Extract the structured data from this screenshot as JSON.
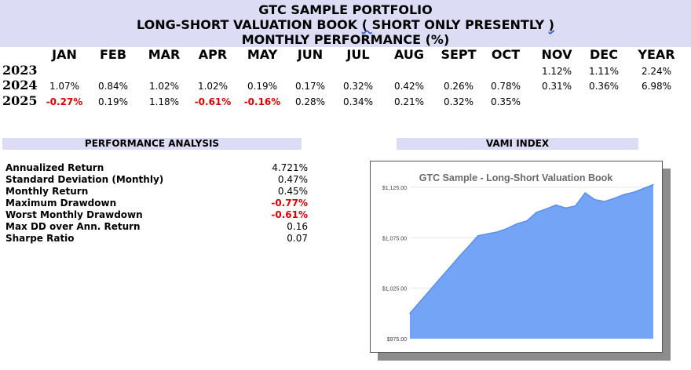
{
  "header": {
    "line1": "GTC SAMPLE PORTFOLIO",
    "line2_a": "LONG-SHORT VALUATION BOOK ",
    "line2_b": "( ",
    "line2_c": "SHORT ONLY PRESENTLY ",
    "line2_d": ")",
    "line3": "MONTHLY PERFORMANCE (%)"
  },
  "columns": [
    "JAN",
    "FEB",
    "MAR",
    "APR",
    "MAY",
    "JUN",
    "JUL",
    "AUG",
    "SEPT",
    "OCT",
    "NOV",
    "DEC",
    "YEAR"
  ],
  "rows": [
    {
      "year": "2023",
      "values": [
        "",
        "",
        "",
        "",
        "",
        "",
        "",
        "",
        "",
        "",
        "1.12%",
        "1.11%",
        "2.24%"
      ]
    },
    {
      "year": "2024",
      "values": [
        "1.07%",
        "0.84%",
        "1.02%",
        "1.02%",
        "0.19%",
        "0.17%",
        "0.32%",
        "0.42%",
        "0.26%",
        "0.78%",
        "0.31%",
        "0.36%",
        "6.98%"
      ]
    },
    {
      "year": "2025",
      "values": [
        "-0.27%",
        "0.19%",
        "1.18%",
        "-0.61%",
        "-0.16%",
        "0.28%",
        "0.34%",
        "0.21%",
        "0.32%",
        "0.35%",
        "",
        "",
        ""
      ]
    }
  ],
  "performance": {
    "title": "PERFORMANCE ANALYSIS",
    "items": [
      {
        "label": "Annualized Return",
        "value": "4.721%"
      },
      {
        "label": "Standard Deviation (Monthly)",
        "value": "0.47%"
      },
      {
        "label": "Monthly Return",
        "value": "0.45%"
      },
      {
        "label": "Maximum Drawdown",
        "value": "-0.77%"
      },
      {
        "label": "Worst Monthly Drawdown",
        "value": "-0.61%"
      },
      {
        "label": "Max DD over Ann. Return",
        "value": "0.16"
      },
      {
        "label": "Sharpe Ratio",
        "value": "0.07"
      }
    ]
  },
  "vami": {
    "title": "VAMI INDEX"
  },
  "colors": {
    "header_bg": "#dcdcf5",
    "negative": "#e00000",
    "area_fill": "#74a4f5",
    "area_line": "#5a8fee"
  },
  "chart_data": {
    "type": "area",
    "title": "GTC Sample - Long-Short Valuation Book",
    "xlabel": "",
    "ylabel": "",
    "ylim": [
      975,
      1135
    ],
    "yticks": [
      "$975.00",
      "$1,025.00",
      "$1,075.00",
      "$1,125.00"
    ],
    "ytick_values": [
      975,
      1025,
      1075,
      1125
    ],
    "grid": true,
    "series": [
      {
        "name": "VAMI",
        "values": [
          1000,
          1011.2,
          1022.4,
          1033.4,
          1044.5,
          1055.7,
          1066.2,
          1077.0,
          1078.9,
          1080.8,
          1084.2,
          1088.8,
          1091.6,
          1100.1,
          1103.5,
          1107.4,
          1104.4,
          1106.5,
          1119.5,
          1112.7,
          1110.9,
          1114.0,
          1117.8,
          1120.1,
          1123.7,
          1127.6
        ]
      }
    ]
  }
}
